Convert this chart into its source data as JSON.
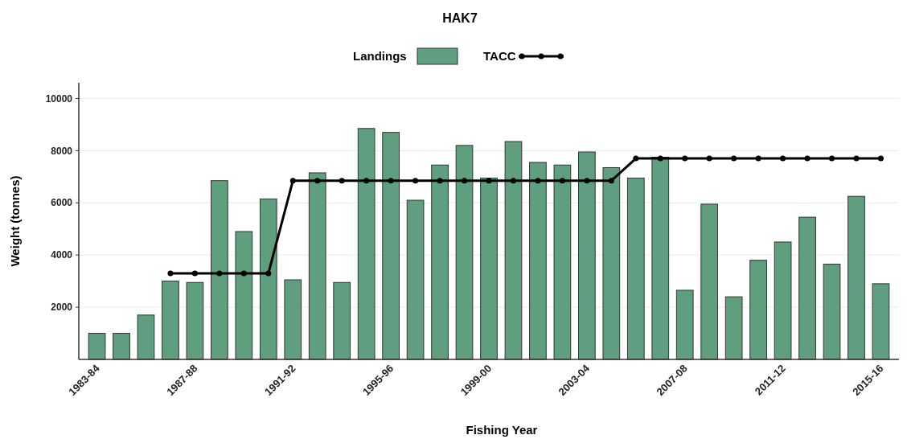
{
  "chart_data": {
    "type": "bar",
    "title": "HAK7",
    "xlabel": "Fishing Year",
    "ylabel": "Weight (tonnes)",
    "categories": [
      "1983-84",
      null,
      null,
      null,
      "1987-88",
      null,
      null,
      null,
      "1991-92",
      null,
      null,
      null,
      "1995-96",
      null,
      null,
      null,
      "1999-00",
      null,
      null,
      null,
      "2003-04",
      null,
      null,
      null,
      "2007-08",
      null,
      null,
      null,
      "2011-12",
      null,
      null,
      null,
      "2015-16"
    ],
    "series": [
      {
        "name": "Landings",
        "color": "#5f9e7e",
        "values": [
          1000,
          1000,
          1700,
          3000,
          2950,
          6850,
          4900,
          6150,
          3050,
          7150,
          2950,
          8850,
          8700,
          6100,
          7450,
          8200,
          6950,
          8350,
          7550,
          7450,
          7950,
          7350,
          6950,
          7750,
          2650,
          5950,
          2400,
          3800,
          4500,
          5450,
          3650,
          6250,
          2900
        ]
      },
      {
        "name": "TACC",
        "type": "line",
        "color": "#000000",
        "values": [
          null,
          null,
          null,
          3300,
          3300,
          3300,
          3300,
          3300,
          6850,
          6850,
          6850,
          6850,
          6850,
          6850,
          6850,
          6850,
          6850,
          6850,
          6850,
          6850,
          6850,
          6850,
          7700,
          7700,
          7700,
          7700,
          7700,
          7700,
          7700,
          7700,
          7700,
          7700,
          7700
        ]
      }
    ],
    "ylim": [
      0,
      10600
    ],
    "yticks": [
      2000,
      4000,
      6000,
      8000,
      10000
    ],
    "grid": "y",
    "legend": "top",
    "marker": "circle",
    "line_style": "solid"
  }
}
